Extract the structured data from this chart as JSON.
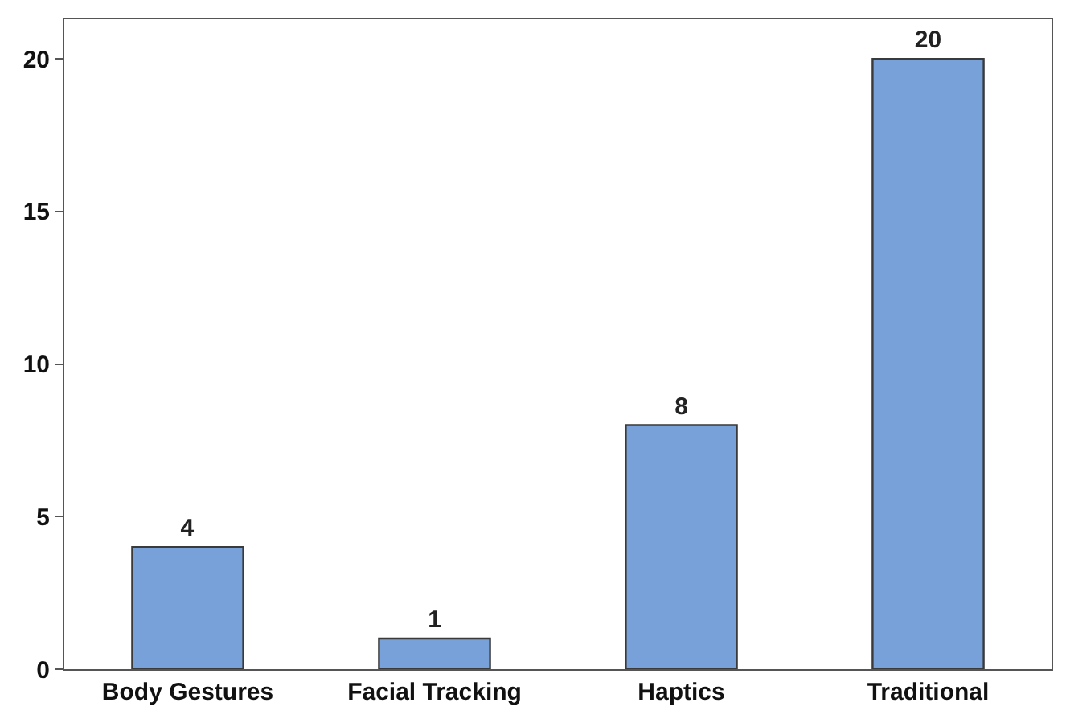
{
  "chart_data": {
    "type": "bar",
    "categories": [
      "Body Gestures",
      "Facial Tracking",
      "Haptics",
      "Traditional"
    ],
    "values": [
      4,
      1,
      8,
      20
    ],
    "color": "#77a1d8",
    "ylim": [
      0,
      21.3
    ],
    "yticks": [
      0,
      5,
      10,
      15,
      20
    ],
    "data_labels": true,
    "legend": false
  }
}
